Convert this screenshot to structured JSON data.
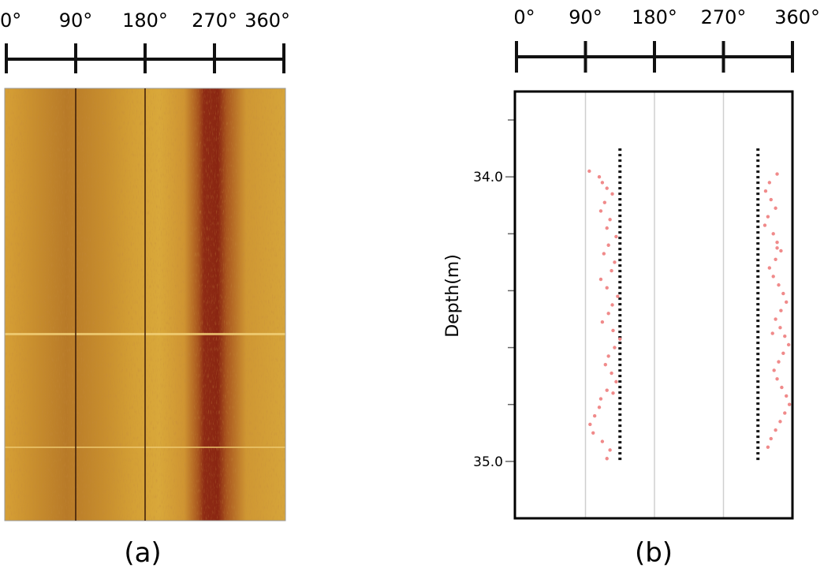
{
  "panel_a": {
    "label": "(a)",
    "angle_ticks": [
      "0°",
      "90°",
      "180°",
      "270°",
      "360°"
    ]
  },
  "panel_b": {
    "label": "(b)",
    "angle_ticks": [
      "0°",
      "90°",
      "180°",
      "270°",
      "360°"
    ],
    "ylabel": "Depth(m)",
    "depth_ticks": [
      "34.0",
      "35.0"
    ]
  },
  "chart_data": [
    {
      "type": "heatmap",
      "panel": "a",
      "xlim": [
        0,
        360
      ],
      "xticks": [
        0,
        90,
        180,
        270,
        360
      ],
      "grid_lines_deg": [
        90,
        180
      ],
      "colors": {
        "background": "#d9a33a",
        "band": "#8e2a14"
      },
      "dark_band_deg": [
        250,
        280
      ],
      "secondary_band_deg": [
        20,
        150
      ]
    },
    {
      "type": "scatter",
      "panel": "b",
      "xlim": [
        0,
        360
      ],
      "xticks": [
        0,
        90,
        180,
        270,
        360
      ],
      "ylim": [
        35.2,
        33.7
      ],
      "yticks": [
        34.0,
        35.0
      ],
      "minor_ytick_step": 0.2,
      "grid": true,
      "reference_lines": [
        {
          "angle": 135,
          "depth_range": [
            33.9,
            35.0
          ],
          "color": "#111111"
        },
        {
          "angle": 315,
          "depth_range": [
            33.9,
            35.0
          ],
          "color": "#111111"
        }
      ],
      "series": [
        {
          "color": "#f08a8a",
          "x": [
            95,
            108,
            112,
            118,
            125,
            115,
            110,
            122,
            118,
            130,
            120,
            114,
            128,
            124,
            110,
            118,
            132,
            125,
            120,
            112,
            126,
            135,
            128,
            120,
            116,
            124,
            130,
            118,
            110,
            108,
            102,
            96,
            100,
            112,
            122,
            118,
            126
          ],
          "y": [
            33.98,
            34.0,
            34.02,
            34.04,
            34.06,
            34.09,
            34.12,
            34.15,
            34.18,
            34.21,
            34.24,
            34.27,
            34.3,
            34.33,
            34.36,
            34.39,
            34.42,
            34.45,
            34.48,
            34.51,
            34.54,
            34.57,
            34.6,
            34.63,
            34.66,
            34.69,
            34.72,
            34.75,
            34.78,
            34.81,
            34.84,
            34.87,
            34.9,
            34.93,
            34.96,
            34.99,
            34.76
          ]
        },
        {
          "color": "#f08a8a",
          "x": [
            340,
            330,
            325,
            332,
            338,
            328,
            324,
            335,
            340,
            345,
            338,
            330,
            335,
            342,
            348,
            352,
            345,
            338,
            344,
            350,
            355,
            348,
            342,
            336,
            340,
            346,
            352,
            356,
            350,
            344,
            338,
            332,
            328,
            334,
            340
          ],
          "y": [
            33.99,
            34.02,
            34.05,
            34.08,
            34.11,
            34.14,
            34.17,
            34.2,
            34.23,
            34.26,
            34.29,
            34.32,
            34.35,
            34.38,
            34.41,
            34.44,
            34.47,
            34.5,
            34.53,
            34.56,
            34.59,
            34.62,
            34.65,
            34.68,
            34.71,
            34.74,
            34.77,
            34.8,
            34.83,
            34.86,
            34.89,
            34.92,
            34.95,
            34.55,
            34.25
          ]
        }
      ]
    }
  ]
}
